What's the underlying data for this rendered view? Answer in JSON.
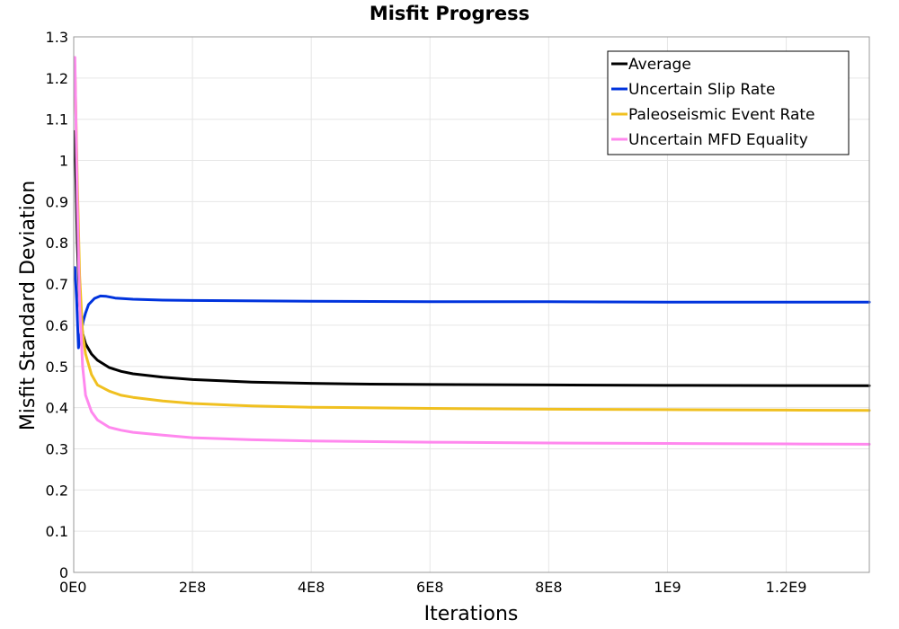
{
  "chart_data": {
    "type": "line",
    "title": "Misfit Progress",
    "xlabel": "Iterations",
    "ylabel": "Misfit Standard Deviation",
    "xlim": [
      0,
      1340000000
    ],
    "ylim": [
      0,
      1.3
    ],
    "xticks": [
      {
        "value": 0,
        "label": "0E0"
      },
      {
        "value": 200000000,
        "label": "2E8"
      },
      {
        "value": 400000000,
        "label": "4E8"
      },
      {
        "value": 600000000,
        "label": "6E8"
      },
      {
        "value": 800000000,
        "label": "8E8"
      },
      {
        "value": 1000000000,
        "label": "1E9"
      },
      {
        "value": 1200000000,
        "label": "1.2E9"
      }
    ],
    "yticks": [
      {
        "value": 0,
        "label": "0"
      },
      {
        "value": 0.1,
        "label": "0.1"
      },
      {
        "value": 0.2,
        "label": "0.2"
      },
      {
        "value": 0.3,
        "label": "0.3"
      },
      {
        "value": 0.4,
        "label": "0.4"
      },
      {
        "value": 0.5,
        "label": "0.5"
      },
      {
        "value": 0.6,
        "label": "0.6"
      },
      {
        "value": 0.7,
        "label": "0.7"
      },
      {
        "value": 0.8,
        "label": "0.8"
      },
      {
        "value": 0.9,
        "label": "0.9"
      },
      {
        "value": 1,
        "label": "1"
      },
      {
        "value": 1.1,
        "label": "1.1"
      },
      {
        "value": 1.2,
        "label": "1.2"
      },
      {
        "value": 1.3,
        "label": "1.3"
      }
    ],
    "grid": true,
    "legend_position": "top-right",
    "series": [
      {
        "name": "Average",
        "color": "#000000",
        "points": [
          [
            2000000,
            1.07
          ],
          [
            6000000,
            0.8
          ],
          [
            10000000,
            0.65
          ],
          [
            15000000,
            0.58
          ],
          [
            20000000,
            0.555
          ],
          [
            30000000,
            0.53
          ],
          [
            40000000,
            0.515
          ],
          [
            60000000,
            0.497
          ],
          [
            80000000,
            0.488
          ],
          [
            100000000,
            0.482
          ],
          [
            150000000,
            0.474
          ],
          [
            200000000,
            0.468
          ],
          [
            300000000,
            0.462
          ],
          [
            400000000,
            0.459
          ],
          [
            500000000,
            0.457
          ],
          [
            600000000,
            0.456
          ],
          [
            800000000,
            0.455
          ],
          [
            1000000000,
            0.454
          ],
          [
            1200000000,
            0.4535
          ],
          [
            1340000000,
            0.453
          ]
        ]
      },
      {
        "name": "Uncertain Slip Rate",
        "color": "#0033dd",
        "points": [
          [
            2000000,
            0.74
          ],
          [
            5000000,
            0.66
          ],
          [
            8000000,
            0.545
          ],
          [
            12000000,
            0.58
          ],
          [
            16000000,
            0.61
          ],
          [
            20000000,
            0.63
          ],
          [
            25000000,
            0.65
          ],
          [
            35000000,
            0.665
          ],
          [
            45000000,
            0.671
          ],
          [
            55000000,
            0.67
          ],
          [
            70000000,
            0.666
          ],
          [
            100000000,
            0.663
          ],
          [
            150000000,
            0.661
          ],
          [
            200000000,
            0.66
          ],
          [
            400000000,
            0.658
          ],
          [
            600000000,
            0.657
          ],
          [
            800000000,
            0.657
          ],
          [
            1000000000,
            0.656
          ],
          [
            1200000000,
            0.656
          ],
          [
            1340000000,
            0.656
          ]
        ]
      },
      {
        "name": "Paleoseismic Event Rate",
        "color": "#f0c020",
        "points": [
          [
            2000000,
            1.23
          ],
          [
            6000000,
            0.95
          ],
          [
            10000000,
            0.72
          ],
          [
            15000000,
            0.58
          ],
          [
            20000000,
            0.53
          ],
          [
            30000000,
            0.48
          ],
          [
            40000000,
            0.455
          ],
          [
            60000000,
            0.44
          ],
          [
            80000000,
            0.43
          ],
          [
            100000000,
            0.425
          ],
          [
            150000000,
            0.416
          ],
          [
            200000000,
            0.41
          ],
          [
            300000000,
            0.404
          ],
          [
            400000000,
            0.401
          ],
          [
            600000000,
            0.398
          ],
          [
            800000000,
            0.396
          ],
          [
            1000000000,
            0.395
          ],
          [
            1200000000,
            0.394
          ],
          [
            1340000000,
            0.393
          ]
        ]
      },
      {
        "name": "Uncertain MFD Equality",
        "color": "#ff88ee",
        "points": [
          [
            2000000,
            1.25
          ],
          [
            6000000,
            0.9
          ],
          [
            10000000,
            0.65
          ],
          [
            15000000,
            0.5
          ],
          [
            20000000,
            0.43
          ],
          [
            30000000,
            0.39
          ],
          [
            40000000,
            0.37
          ],
          [
            60000000,
            0.352
          ],
          [
            80000000,
            0.345
          ],
          [
            100000000,
            0.34
          ],
          [
            150000000,
            0.333
          ],
          [
            200000000,
            0.327
          ],
          [
            300000000,
            0.322
          ],
          [
            400000000,
            0.319
          ],
          [
            600000000,
            0.316
          ],
          [
            800000000,
            0.314
          ],
          [
            1000000000,
            0.313
          ],
          [
            1200000000,
            0.312
          ],
          [
            1340000000,
            0.311
          ]
        ]
      }
    ]
  }
}
